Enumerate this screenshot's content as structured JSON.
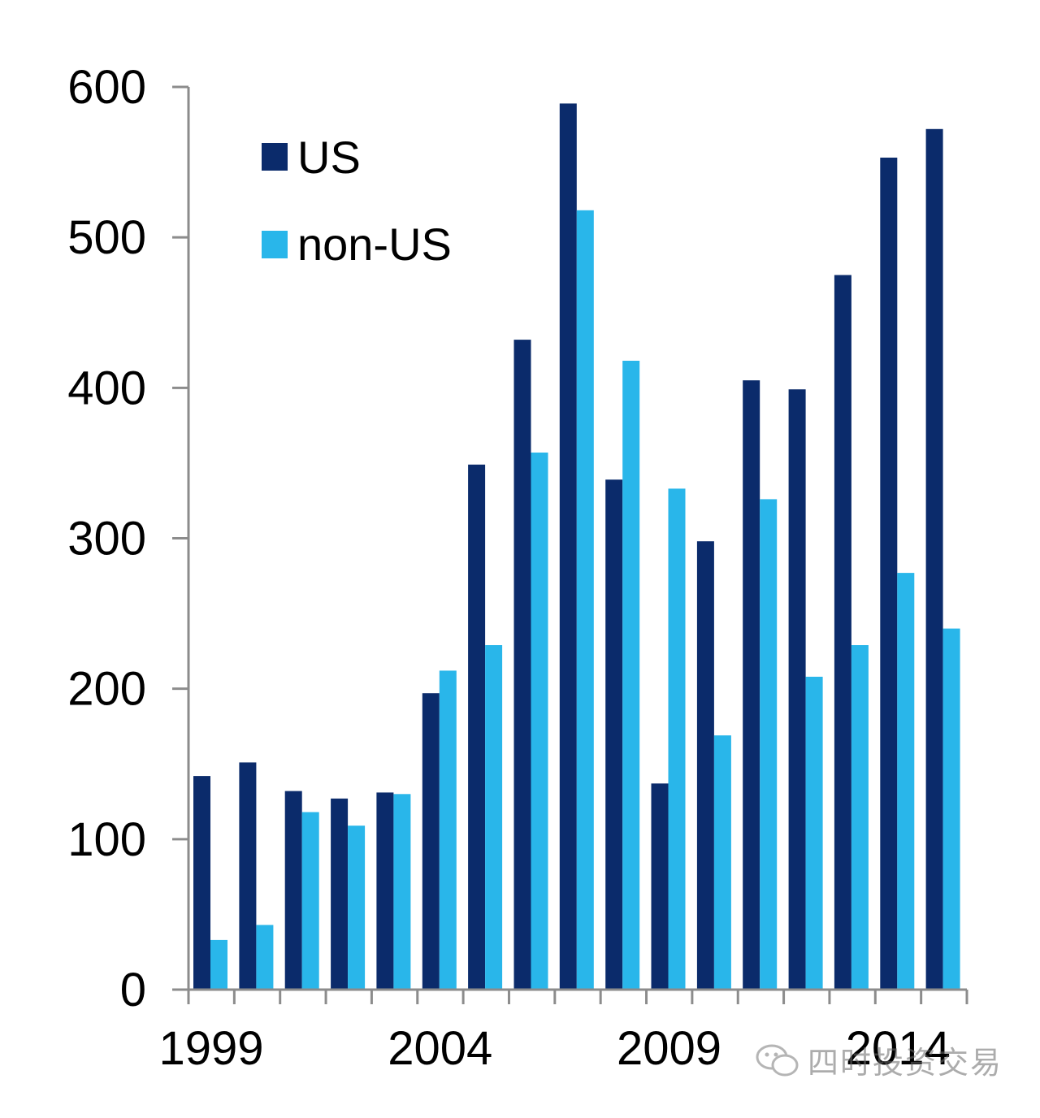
{
  "chart_data": {
    "type": "bar",
    "title": "",
    "xlabel": "",
    "ylabel": "",
    "categories": [
      "1999",
      "2000",
      "2001",
      "2002",
      "2003",
      "2004",
      "2005",
      "2006",
      "2007",
      "2008",
      "2009",
      "2010",
      "2011",
      "2012",
      "2013",
      "2014",
      "2015"
    ],
    "x_tick_labels": [
      "1999",
      "2004",
      "2009",
      "2014"
    ],
    "x_tick_label_categories": [
      "1999",
      "2004",
      "2009",
      "2014"
    ],
    "y_ticks": [
      0,
      100,
      200,
      300,
      400,
      500,
      600
    ],
    "ylim": [
      0,
      600
    ],
    "grid": false,
    "legend_position": "top-left",
    "series": [
      {
        "name": "US",
        "color": "#0b2b6b",
        "values": [
          142,
          151,
          132,
          127,
          131,
          197,
          349,
          432,
          589,
          339,
          137,
          298,
          405,
          399,
          475,
          553,
          572
        ]
      },
      {
        "name": "non-US",
        "color": "#29b6ea",
        "values": [
          33,
          43,
          118,
          109,
          130,
          212,
          229,
          357,
          518,
          418,
          333,
          169,
          326,
          208,
          229,
          277,
          240
        ]
      }
    ]
  },
  "watermark": {
    "text": "四时投资交易",
    "icon": "wechat-icon"
  }
}
